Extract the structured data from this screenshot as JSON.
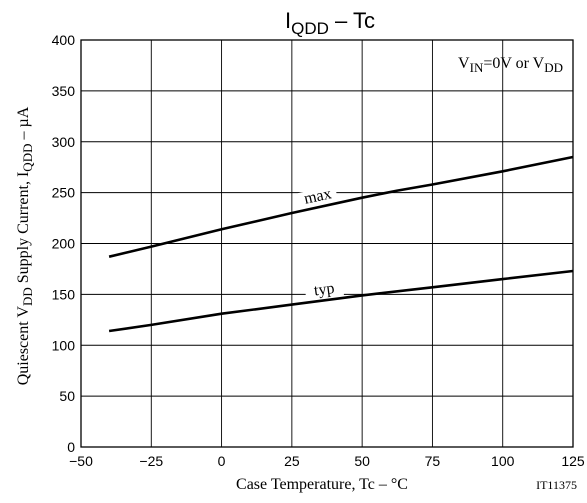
{
  "chart_data": {
    "type": "line",
    "title": {
      "main": "I",
      "sub": "QDD",
      "suffix": " – Tc"
    },
    "condition": {
      "p1": "V",
      "s1": "IN",
      "p2": "=0V or V",
      "s2": "DD"
    },
    "xlabel": "Case Temperature, Tc  –  °C",
    "ylabel": {
      "p1": "Quiescent V",
      "s1": "DD",
      "p2": " Supply Current, I",
      "s2": "QDD",
      "p3": "  –  µA"
    },
    "code": "IT11375",
    "xlim": [
      -50,
      125
    ],
    "ylim": [
      0,
      400
    ],
    "xticks": [
      -50,
      -25,
      0,
      25,
      50,
      75,
      100,
      125
    ],
    "yticks": [
      0,
      50,
      100,
      150,
      200,
      250,
      300,
      350,
      400
    ],
    "grid": true,
    "series": [
      {
        "name": "max",
        "x": [
          -40,
          -25,
          0,
          25,
          50,
          62.5,
          75,
          100,
          125
        ],
        "y": [
          187,
          197,
          214,
          230,
          245,
          252,
          258,
          271,
          285
        ]
      },
      {
        "name": "typ",
        "x": [
          -40,
          -25,
          0,
          25,
          50,
          75,
          100,
          125
        ],
        "y": [
          114,
          120,
          131,
          140,
          149,
          157,
          165,
          173
        ]
      }
    ]
  }
}
